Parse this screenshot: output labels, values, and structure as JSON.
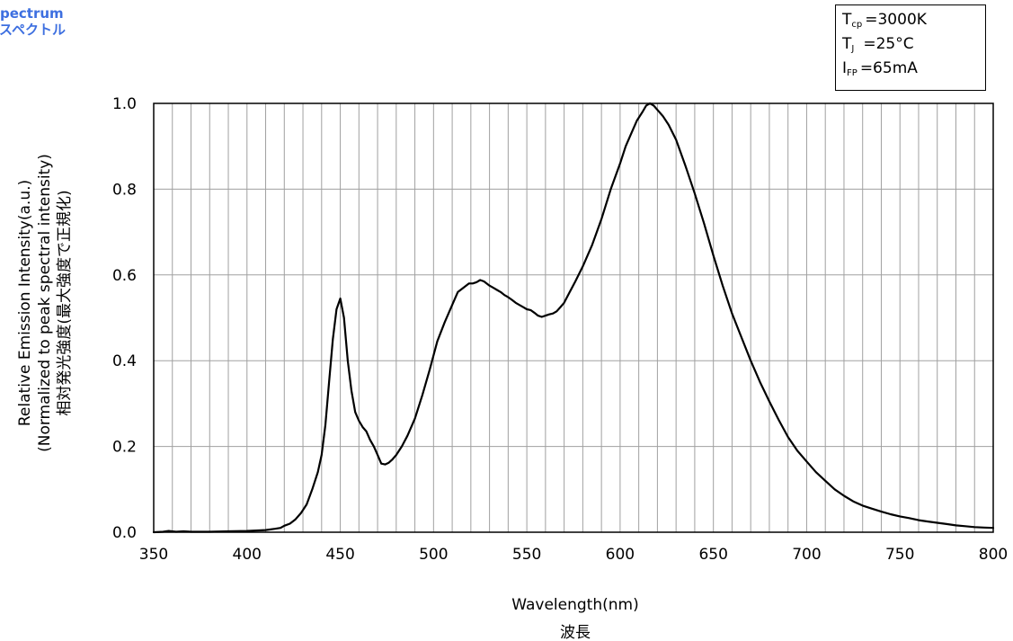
{
  "header": {
    "title_line1": "pectrum",
    "title_line2": "光スペクトル"
  },
  "conditions": [
    {
      "sym": "T",
      "sub": "cp",
      "value": "=3000K"
    },
    {
      "sym": "T",
      "sub": "J",
      "value": "=25°C"
    },
    {
      "sym": "I",
      "sub": "FP",
      "value": "=65mA"
    }
  ],
  "colors": {
    "accent": "#3d6fe0",
    "line": "#000000",
    "grid": "#a0a0a0"
  },
  "chart_data": {
    "type": "line",
    "xlabel": "Wavelength(nm)",
    "xlabel_ja": "波長",
    "ylabel_lines": [
      "Relative Emission Intensity(a.u.)",
      "(Normalized to peak spectral intensity)",
      "相対発光強度(最大強度で正規化)"
    ],
    "xlim": [
      350,
      800
    ],
    "ylim": [
      0,
      1.0
    ],
    "x_ticks": [
      350,
      400,
      450,
      500,
      550,
      600,
      650,
      700,
      750,
      800
    ],
    "x_tick_labels": [
      "350",
      "400",
      "450",
      "500",
      "550",
      "600",
      "650",
      "700",
      "750",
      "800"
    ],
    "y_ticks": [
      0,
      0.2,
      0.4,
      0.6,
      0.8,
      1.0
    ],
    "y_tick_labels": [
      "0.0",
      "0.2",
      "0.4",
      "0.6",
      "0.8",
      "1.0"
    ],
    "grid": true,
    "x_minor_step": 10,
    "series": [
      {
        "x": [
          350,
          355,
          358,
          362,
          366,
          370,
          375,
          380,
          390,
          400,
          405,
          410,
          415,
          418,
          420,
          423,
          426,
          429,
          432,
          435,
          438,
          440,
          442,
          444,
          446,
          448,
          450,
          452,
          454,
          456,
          458,
          460,
          462,
          464,
          466,
          468,
          470,
          472,
          474,
          476,
          478,
          480,
          483,
          486,
          490,
          494,
          498,
          502,
          506,
          510,
          513,
          516,
          519,
          521,
          523,
          525,
          527,
          530,
          532,
          534,
          536,
          538,
          540,
          542,
          544,
          546,
          548,
          550,
          552,
          554,
          556,
          558,
          560,
          562,
          564,
          566,
          568,
          570,
          573,
          576,
          580,
          585,
          590,
          595,
          600,
          603,
          606,
          609,
          612,
          614,
          616,
          618,
          620,
          623,
          626,
          630,
          635,
          640,
          645,
          650,
          655,
          660,
          665,
          670,
          675,
          680,
          685,
          690,
          695,
          700,
          705,
          710,
          715,
          720,
          725,
          730,
          735,
          740,
          745,
          750,
          755,
          760,
          765,
          770,
          775,
          780,
          785,
          790,
          795,
          800
        ],
        "y": [
          0.0,
          0.001,
          0.003,
          0.001,
          0.002,
          0.001,
          0.001,
          0.001,
          0.002,
          0.003,
          0.004,
          0.005,
          0.008,
          0.01,
          0.015,
          0.02,
          0.03,
          0.045,
          0.065,
          0.1,
          0.14,
          0.18,
          0.25,
          0.35,
          0.45,
          0.52,
          0.545,
          0.5,
          0.4,
          0.33,
          0.28,
          0.26,
          0.245,
          0.235,
          0.215,
          0.2,
          0.18,
          0.16,
          0.158,
          0.162,
          0.17,
          0.18,
          0.2,
          0.225,
          0.265,
          0.32,
          0.38,
          0.445,
          0.49,
          0.53,
          0.56,
          0.57,
          0.58,
          0.58,
          0.583,
          0.588,
          0.585,
          0.575,
          0.57,
          0.565,
          0.56,
          0.553,
          0.548,
          0.542,
          0.535,
          0.53,
          0.525,
          0.52,
          0.518,
          0.512,
          0.505,
          0.502,
          0.505,
          0.508,
          0.51,
          0.515,
          0.525,
          0.535,
          0.56,
          0.585,
          0.62,
          0.67,
          0.73,
          0.8,
          0.86,
          0.9,
          0.93,
          0.96,
          0.98,
          0.995,
          1.0,
          0.995,
          0.985,
          0.97,
          0.95,
          0.915,
          0.855,
          0.79,
          0.72,
          0.645,
          0.575,
          0.51,
          0.455,
          0.4,
          0.35,
          0.305,
          0.262,
          0.222,
          0.19,
          0.165,
          0.14,
          0.12,
          0.1,
          0.085,
          0.072,
          0.062,
          0.055,
          0.048,
          0.042,
          0.037,
          0.033,
          0.028,
          0.025,
          0.022,
          0.019,
          0.016,
          0.014,
          0.012,
          0.011,
          0.01
        ]
      }
    ]
  }
}
